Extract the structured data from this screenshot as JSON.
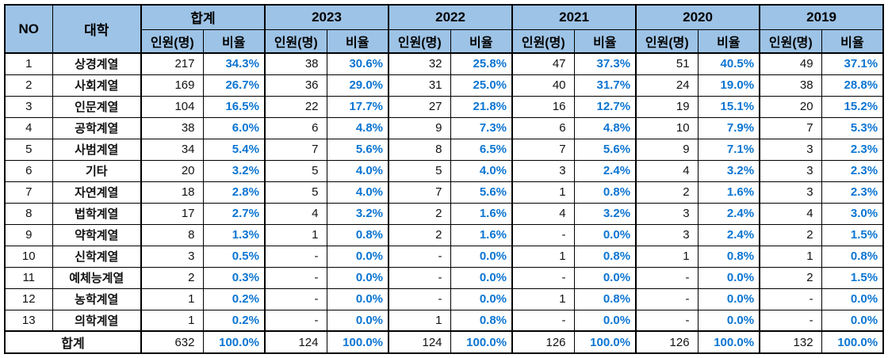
{
  "chart_data": {
    "type": "table",
    "headers": {
      "no": "NO",
      "category": "대학",
      "count": "인원(명)",
      "ratio": "비율"
    },
    "groups": [
      "합계",
      "2023",
      "2022",
      "2021",
      "2020",
      "2019"
    ],
    "rows": [
      {
        "no": "1",
        "name": "상경계열",
        "values": [
          "217",
          "34.3%",
          "38",
          "30.6%",
          "32",
          "25.8%",
          "47",
          "37.3%",
          "51",
          "40.5%",
          "49",
          "37.1%"
        ]
      },
      {
        "no": "2",
        "name": "사회계열",
        "values": [
          "169",
          "26.7%",
          "36",
          "29.0%",
          "31",
          "25.0%",
          "40",
          "31.7%",
          "24",
          "19.0%",
          "38",
          "28.8%"
        ]
      },
      {
        "no": "3",
        "name": "인문계열",
        "values": [
          "104",
          "16.5%",
          "22",
          "17.7%",
          "27",
          "21.8%",
          "16",
          "12.7%",
          "19",
          "15.1%",
          "20",
          "15.2%"
        ]
      },
      {
        "no": "4",
        "name": "공학계열",
        "values": [
          "38",
          "6.0%",
          "6",
          "4.8%",
          "9",
          "7.3%",
          "6",
          "4.8%",
          "10",
          "7.9%",
          "7",
          "5.3%"
        ]
      },
      {
        "no": "5",
        "name": "사범계열",
        "values": [
          "34",
          "5.4%",
          "7",
          "5.6%",
          "8",
          "6.5%",
          "7",
          "5.6%",
          "9",
          "7.1%",
          "3",
          "2.3%"
        ]
      },
      {
        "no": "6",
        "name": "기타",
        "values": [
          "20",
          "3.2%",
          "5",
          "4.0%",
          "5",
          "4.0%",
          "3",
          "2.4%",
          "4",
          "3.2%",
          "3",
          "2.3%"
        ]
      },
      {
        "no": "7",
        "name": "자연계열",
        "values": [
          "18",
          "2.8%",
          "5",
          "4.0%",
          "7",
          "5.6%",
          "1",
          "0.8%",
          "2",
          "1.6%",
          "3",
          "2.3%"
        ]
      },
      {
        "no": "8",
        "name": "법학계열",
        "values": [
          "17",
          "2.7%",
          "4",
          "3.2%",
          "2",
          "1.6%",
          "4",
          "3.2%",
          "3",
          "2.4%",
          "4",
          "3.0%"
        ]
      },
      {
        "no": "9",
        "name": "약학계열",
        "values": [
          "8",
          "1.3%",
          "1",
          "0.8%",
          "2",
          "1.6%",
          "-",
          "0.0%",
          "3",
          "2.4%",
          "2",
          "1.5%"
        ]
      },
      {
        "no": "10",
        "name": "신학계열",
        "values": [
          "3",
          "0.5%",
          "-",
          "0.0%",
          "-",
          "0.0%",
          "1",
          "0.8%",
          "1",
          "0.8%",
          "1",
          "0.8%"
        ]
      },
      {
        "no": "11",
        "name": "예체능계열",
        "values": [
          "2",
          "0.3%",
          "-",
          "0.0%",
          "-",
          "0.0%",
          "-",
          "0.0%",
          "-",
          "0.0%",
          "2",
          "1.5%"
        ]
      },
      {
        "no": "12",
        "name": "농학계열",
        "values": [
          "1",
          "0.2%",
          "-",
          "0.0%",
          "-",
          "0.0%",
          "1",
          "0.8%",
          "-",
          "0.0%",
          "-",
          "0.0%"
        ]
      },
      {
        "no": "13",
        "name": "의학계열",
        "values": [
          "1",
          "0.2%",
          "-",
          "0.0%",
          "1",
          "0.8%",
          "-",
          "0.0%",
          "-",
          "0.0%",
          "-",
          "0.0%"
        ]
      }
    ],
    "total": {
      "label": "합계",
      "values": [
        "632",
        "100.0%",
        "124",
        "100.0%",
        "124",
        "100.0%",
        "126",
        "100.0%",
        "126",
        "100.0%",
        "132",
        "100.0%"
      ]
    }
  },
  "colors": {
    "header_bg": "#9DC3E6",
    "ratio_text": "#0C75D2",
    "border": "#000000",
    "text": "#121212"
  }
}
